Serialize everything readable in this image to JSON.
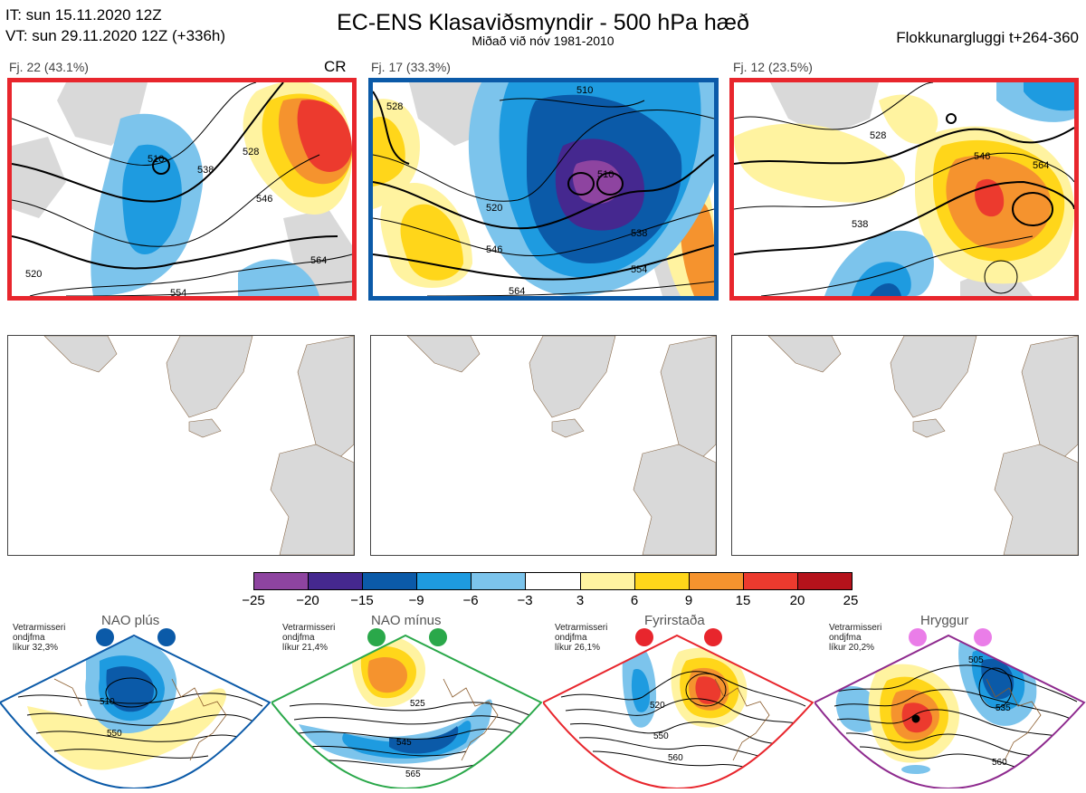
{
  "header": {
    "it": "IT: sun 15.11.2020 12Z",
    "vt": "VT: sun 29.11.2020 12Z  (+336h)",
    "title": "EC-ENS Klasaviðsmyndir - 500 hPa hæð",
    "subtitle": "Miðað við nóv 1981-2010",
    "window": "Flokkunargluggi t+264-360"
  },
  "clusters": [
    {
      "label": "Fj. 22 (43.1%)",
      "tag": "CR",
      "border": "#e8262d",
      "contours": [
        "510",
        "520",
        "528",
        "538",
        "546",
        "554",
        "564"
      ]
    },
    {
      "label": "Fj. 17 (33.3%)",
      "tag": "",
      "border": "#0b5aa8",
      "contours": [
        "510",
        "510",
        "520",
        "528",
        "538",
        "546",
        "554",
        "564"
      ]
    },
    {
      "label": "Fj. 12 (23.5%)",
      "tag": "",
      "border": "#e8262d",
      "contours": [
        "528",
        "538",
        "546",
        "564"
      ]
    }
  ],
  "colorbar": {
    "ticks": [
      "−25",
      "−20",
      "−15",
      "−9",
      "−6",
      "−3",
      "3",
      "6",
      "9",
      "15",
      "20",
      "25"
    ],
    "colors": [
      "#8e44a0",
      "#45288f",
      "#0b5aa8",
      "#1e9be0",
      "#7cc4ec",
      "#ffffff",
      "#fff3a0",
      "#ffd61a",
      "#f5932e",
      "#ec3a2e",
      "#b5121b"
    ]
  },
  "regimes": [
    {
      "name": "NAO plús",
      "note1": "Vetrarmisseri",
      "note2": "ondjfma",
      "note3": "líkur 32,3%",
      "color": "#0b5aa8",
      "dot": "#0b5aa8",
      "contours": [
        "510",
        "550"
      ]
    },
    {
      "name": "NAO mínus",
      "note1": "Vetrarmisseri",
      "note2": "ondjfma",
      "note3": "líkur 21,4%",
      "color": "#2aa84a",
      "dot": "#2aa84a",
      "contours": [
        "525",
        "545",
        "565"
      ]
    },
    {
      "name": "Fyrirstaða",
      "note1": "Vetrarmisseri",
      "note2": "ondjfma",
      "note3": "líkur 26,1%",
      "color": "#e8262d",
      "dot": "#e8262d",
      "contours": [
        "520",
        "550",
        "560"
      ]
    },
    {
      "name": "Hryggur",
      "note1": "Vetrarmisseri",
      "note2": "ondjfma",
      "note3": "líkur 20,2%",
      "color": "#8e2a8e",
      "dot": "#ea7de8",
      "contours": [
        "505",
        "535",
        "560"
      ]
    }
  ]
}
